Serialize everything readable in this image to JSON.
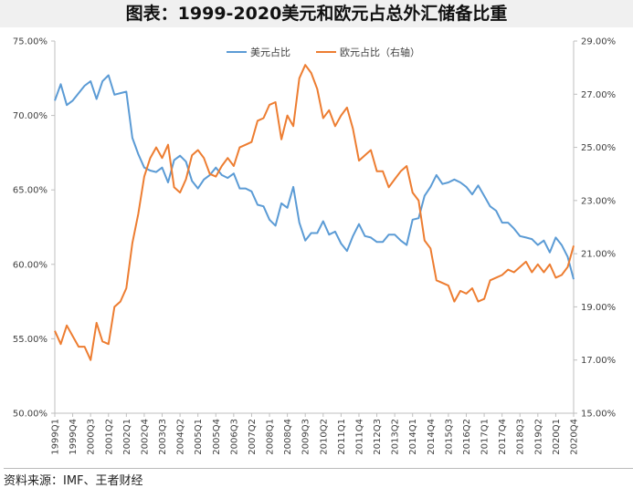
{
  "title": "图表：1999-2020美元和欧元占总外汇储备比重",
  "source": "资料来源：IMF、王者财经",
  "colors": {
    "usd": "#5b9bd5",
    "eur": "#ed7d31",
    "axis": "#bfbfbf"
  },
  "chart_data": {
    "type": "line",
    "title": "图表：1999-2020美元和欧元占总外汇储备比重",
    "legend_position": "top-center",
    "grid": false,
    "x_tick_labels": [
      "1999Q1",
      "1999Q4",
      "2000Q3",
      "2001Q2",
      "2002Q1",
      "2002Q4",
      "2003Q3",
      "2004Q2",
      "2005Q1",
      "2005Q4",
      "2006Q3",
      "2007Q2",
      "2008Q1",
      "2008Q4",
      "2009Q3",
      "2010Q2",
      "2011Q1",
      "2011Q4",
      "2012Q3",
      "2013Q2",
      "2014Q1",
      "2014Q4",
      "2015Q3",
      "2016Q2",
      "2017Q1",
      "2017Q4",
      "2018Q3",
      "2019Q2",
      "2020Q1",
      "2020Q4"
    ],
    "y_left": {
      "min": 50,
      "max": 75,
      "ticks": [
        "50.00%",
        "55.00%",
        "60.00%",
        "65.00%",
        "70.00%",
        "75.00%"
      ]
    },
    "y_right": {
      "min": 15,
      "max": 29,
      "ticks": [
        "15.00%",
        "17.00%",
        "19.00%",
        "21.00%",
        "23.00%",
        "25.00%",
        "27.00%",
        "29.00%"
      ]
    },
    "series": [
      {
        "name": "美元占比",
        "axis": "left",
        "values": [
          71.0,
          72.1,
          70.7,
          71.0,
          71.5,
          72.0,
          72.3,
          71.1,
          72.3,
          72.7,
          71.4,
          71.5,
          71.6,
          68.5,
          67.4,
          66.5,
          66.3,
          66.2,
          66.5,
          65.5,
          67.0,
          67.3,
          66.9,
          65.6,
          65.1,
          65.7,
          66.0,
          66.5,
          66.0,
          65.8,
          66.1,
          65.1,
          65.1,
          64.9,
          64.0,
          63.9,
          63.0,
          62.6,
          64.1,
          63.8,
          65.2,
          62.8,
          61.6,
          62.1,
          62.1,
          62.9,
          62.0,
          62.2,
          61.4,
          60.9,
          61.9,
          62.7,
          61.9,
          61.8,
          61.5,
          61.5,
          62.0,
          62.0,
          61.6,
          61.3,
          63.0,
          63.1,
          64.6,
          65.2,
          66.0,
          65.4,
          65.5,
          65.7,
          65.5,
          65.2,
          64.7,
          65.3,
          64.6,
          63.9,
          63.6,
          62.8,
          62.8,
          62.4,
          61.9,
          61.8,
          61.7,
          61.3,
          61.6,
          60.8,
          61.8,
          61.3,
          60.5,
          59.0
        ]
      },
      {
        "name": "欧元占比（右轴）",
        "axis": "right",
        "values": [
          18.1,
          17.6,
          18.3,
          17.9,
          17.5,
          17.5,
          17.0,
          18.4,
          17.7,
          17.6,
          19.0,
          19.2,
          19.7,
          21.4,
          22.5,
          23.9,
          24.6,
          25.0,
          24.6,
          25.1,
          23.5,
          23.3,
          23.8,
          24.7,
          24.9,
          24.6,
          24.0,
          23.9,
          24.3,
          24.6,
          24.3,
          25.0,
          25.1,
          25.2,
          26.0,
          26.1,
          26.6,
          26.7,
          25.3,
          26.2,
          25.8,
          27.6,
          28.1,
          27.8,
          27.2,
          26.1,
          26.4,
          25.8,
          26.2,
          26.5,
          25.7,
          24.5,
          24.7,
          24.9,
          24.1,
          24.1,
          23.5,
          23.8,
          24.1,
          24.3,
          23.3,
          23.0,
          21.5,
          21.2,
          20.0,
          19.9,
          19.8,
          19.2,
          19.6,
          19.5,
          19.7,
          19.2,
          19.3,
          20.0,
          20.1,
          20.2,
          20.4,
          20.3,
          20.5,
          20.7,
          20.3,
          20.6,
          20.3,
          20.6,
          20.1,
          20.2,
          20.5,
          21.3
        ]
      }
    ]
  }
}
